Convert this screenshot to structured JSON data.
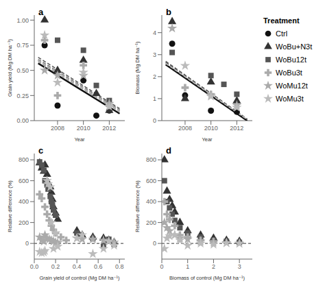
{
  "chart_data": [
    {
      "type": "scatter",
      "title": "a",
      "x_label": "Year",
      "y_label": "Grain yield  (Mg DM ha⁻¹)",
      "xlim": [
        2006.2,
        2013.2
      ],
      "xticks": [
        2008,
        2010,
        2012
      ],
      "ylim": [
        0,
        1.05
      ],
      "yticks": [
        {
          "value": 0,
          "label": "0.00"
        },
        {
          "value": 0.25,
          "label": "0.25"
        },
        {
          "value": 0.5,
          "label": "0.50"
        },
        {
          "value": 0.75,
          "label": "0.75"
        },
        {
          "value": 1,
          "label": "1.00"
        }
      ],
      "legend": "right",
      "legend_title": "Treatment",
      "series": [
        {
          "name": "Ctrl",
          "type": "scatter",
          "color": "#111111",
          "marker": "circle",
          "x": [
            2007,
            2008,
            2009,
            2010,
            2011,
            2012
          ],
          "values": [
            0.75,
            0.15,
            null,
            0.4,
            0.05,
            0.1
          ]
        },
        {
          "name": "WoBu+N3t",
          "type": "scatter",
          "color": "#333333",
          "marker": "triangle",
          "x": [
            2007,
            2008,
            2009,
            2010,
            2011,
            2012
          ],
          "values": [
            1.0,
            0.5,
            null,
            0.6,
            0.27,
            0.1
          ]
        },
        {
          "name": "WoBu12t",
          "type": "scatter",
          "color": "#555555",
          "marker": "square",
          "x": [
            2007,
            2008,
            2009,
            2010,
            2011,
            2012
          ],
          "values": [
            null,
            0.8,
            null,
            0.7,
            0.35,
            0.2
          ]
        },
        {
          "name": "WoBu3t",
          "type": "scatter",
          "color": "#aaaaaa",
          "marker": "plus",
          "x": [
            2007,
            2008,
            2009,
            2010,
            2011,
            2012
          ],
          "values": [
            0.8,
            0.25,
            null,
            0.55,
            null,
            0.15
          ]
        },
        {
          "name": "WoMu12t",
          "type": "scatter",
          "color": "#aaaaaa",
          "marker": "star",
          "x": [
            2007,
            2008,
            2009,
            2010,
            2011,
            2012
          ],
          "values": [
            0.5,
            0.45,
            null,
            0.45,
            null,
            0.17
          ]
        },
        {
          "name": "WoMu3t",
          "type": "scatter",
          "color": "#bbbbbb",
          "marker": "star",
          "x": [
            2007,
            2008,
            2009,
            2010,
            2011,
            2012
          ],
          "values": [
            0.85,
            0.38,
            null,
            0.48,
            null,
            0.14
          ]
        },
        {
          "type": "line",
          "color": "#111111",
          "line_style": "solid",
          "x": [
            2006.5,
            2012.8
          ],
          "values": [
            0.57,
            0.07
          ]
        },
        {
          "type": "line",
          "color": "#333333",
          "line_style": "dashed",
          "x": [
            2006.5,
            2012.8
          ],
          "values": [
            0.6,
            0.1
          ]
        },
        {
          "type": "line",
          "color": "#555555",
          "line_style": "dashed",
          "x": [
            2006.5,
            2012.8
          ],
          "values": [
            0.63,
            0.12
          ]
        },
        {
          "type": "line",
          "color": "#777777",
          "line_style": "dashed",
          "x": [
            2006.5,
            2012.8
          ],
          "values": [
            0.61,
            0.11
          ]
        },
        {
          "type": "line",
          "color": "#999999",
          "line_style": "dashed",
          "x": [
            2006.5,
            2012.8
          ],
          "values": [
            0.59,
            0.09
          ]
        },
        {
          "type": "line",
          "color": "#bbbbbb",
          "line_style": "dashed",
          "x": [
            2006.5,
            2012.8
          ],
          "values": [
            0.6,
            0.1
          ]
        }
      ]
    },
    {
      "type": "scatter",
      "title": "b",
      "x_label": "Year",
      "y_label": "Biomass  (Mg DM ha⁻¹)",
      "xlim": [
        2006.2,
        2013.2
      ],
      "xticks": [
        2008,
        2010,
        2012
      ],
      "ylim": [
        0,
        4.8
      ],
      "yticks": [
        0,
        1,
        2,
        3,
        4
      ],
      "series": [
        {
          "name": "Ctrl",
          "type": "scatter",
          "color": "#111111",
          "marker": "circle",
          "x": [
            2007,
            2008,
            2009,
            2010,
            2011,
            2012
          ],
          "values": [
            3.5,
            1.15,
            null,
            0.45,
            null,
            0.4
          ]
        },
        {
          "name": "WoBu+N3t",
          "type": "scatter",
          "color": "#333333",
          "marker": "triangle",
          "x": [
            2007,
            2008,
            2009,
            2010,
            2011,
            2012
          ],
          "values": [
            4.5,
            1.0,
            null,
            1.75,
            null,
            0.9
          ]
        },
        {
          "name": "WoBu12t",
          "type": "scatter",
          "color": "#555555",
          "marker": "square",
          "x": [
            2007,
            2008,
            2009,
            2010,
            2011,
            2012
          ],
          "values": [
            3.1,
            null,
            null,
            2.05,
            1.65,
            1.2
          ]
        },
        {
          "name": "WoBu3t",
          "type": "scatter",
          "color": "#aaaaaa",
          "marker": "plus",
          "x": [
            2007,
            2008,
            2009,
            2010,
            2011,
            2012
          ],
          "values": [
            null,
            1.5,
            null,
            1.2,
            null,
            null
          ]
        },
        {
          "name": "WoMu12t",
          "type": "scatter",
          "color": "#aaaaaa",
          "marker": "star",
          "x": [
            2007,
            2008,
            2009,
            2010,
            2011,
            2012
          ],
          "values": [
            4.2,
            null,
            null,
            1.15,
            null,
            0.7
          ]
        },
        {
          "name": "WoMu3t",
          "type": "scatter",
          "color": "#bbbbbb",
          "marker": "star",
          "x": [
            2007,
            2008,
            2009,
            2010,
            2011,
            2012
          ],
          "values": [
            null,
            2.5,
            null,
            1.1,
            null,
            0.6
          ]
        },
        {
          "type": "line",
          "color": "#111111",
          "line_style": "solid",
          "x": [
            2006.5,
            2012.8
          ],
          "values": [
            2.55,
            0.0
          ]
        },
        {
          "type": "line",
          "color": "#333333",
          "line_style": "dashed",
          "x": [
            2006.5,
            2012.8
          ],
          "values": [
            2.65,
            0.05
          ]
        },
        {
          "type": "line",
          "color": "#555555",
          "line_style": "dashed",
          "x": [
            2006.5,
            2012.8
          ],
          "values": [
            2.7,
            0.08
          ]
        },
        {
          "type": "line",
          "color": "#777777",
          "line_style": "dashed",
          "x": [
            2006.5,
            2012.8
          ],
          "values": [
            2.62,
            0.05
          ]
        },
        {
          "type": "line",
          "color": "#999999",
          "line_style": "dashed",
          "x": [
            2006.5,
            2012.8
          ],
          "values": [
            2.6,
            0.06
          ]
        },
        {
          "type": "line",
          "color": "#bbbbbb",
          "line_style": "dashed",
          "x": [
            2006.5,
            2012.8
          ],
          "values": [
            2.61,
            0.06
          ]
        }
      ]
    },
    {
      "type": "scatter",
      "title": "c",
      "x_label": "Grain yield of control  (Mg DM ha⁻¹)",
      "y_label": "Relative difference (%)",
      "xlim": [
        0,
        0.85
      ],
      "xticks": [
        {
          "value": 0,
          "label": "0.0"
        },
        0.2,
        0.4,
        0.6,
        0.8
      ],
      "ylim": [
        -150,
        860
      ],
      "yticks": [
        0,
        200,
        400,
        600,
        800
      ],
      "reference_lines": [
        {
          "y": 0,
          "color": "#333333",
          "line_style": "dashed"
        }
      ],
      "series": [
        {
          "name": "WoBu+N3t",
          "type": "scatter",
          "color": "#333333",
          "marker": "triangle",
          "x": [
            0.05,
            0.07,
            0.09,
            0.1,
            0.12,
            0.13,
            0.15,
            0.16,
            0.17,
            0.18,
            0.2,
            0.22,
            0.4,
            0.45,
            0.55,
            0.65,
            0.7,
            0.75
          ],
          "values": [
            770,
            720,
            690,
            750,
            660,
            580,
            540,
            490,
            420,
            350,
            290,
            230,
            120,
            80,
            60,
            50,
            30,
            10
          ]
        },
        {
          "name": "WoBu12t",
          "type": "scatter",
          "color": "#555555",
          "marker": "square",
          "x": [
            0.05,
            0.07,
            0.09,
            0.1,
            0.12,
            0.13,
            0.15,
            0.16,
            0.17,
            0.18,
            0.2,
            0.4,
            0.42,
            0.55,
            0.65,
            0.7,
            0.75
          ],
          "values": [
            780,
            750,
            700,
            600,
            560,
            520,
            450,
            400,
            370,
            320,
            270,
            100,
            80,
            45,
            -20,
            40,
            -10
          ]
        },
        {
          "name": "WoBu3t",
          "type": "scatter",
          "color": "#aaaaaa",
          "marker": "plus",
          "x": [
            0.05,
            0.07,
            0.1,
            0.12,
            0.14,
            0.16,
            0.18,
            0.2,
            0.25,
            0.3
          ],
          "values": [
            470,
            430,
            350,
            280,
            220,
            170,
            130,
            100,
            60,
            30
          ]
        },
        {
          "name": "WoMu12t",
          "type": "scatter",
          "color": "#aaaaaa",
          "marker": "star",
          "x": [
            0.05,
            0.07,
            0.09,
            0.1,
            0.12,
            0.14,
            0.16,
            0.18,
            0.2,
            0.22,
            0.4,
            0.45,
            0.55,
            0.65,
            0.7,
            0.75
          ],
          "values": [
            60,
            30,
            20,
            80,
            50,
            40,
            30,
            20,
            10,
            5,
            50,
            40,
            40,
            30,
            20,
            10
          ]
        },
        {
          "name": "WoMu3t",
          "type": "scatter",
          "color": "#bbbbbb",
          "marker": "star",
          "x": [
            0.05,
            0.07,
            0.09,
            0.1,
            0.12,
            0.13,
            0.15,
            0.16,
            0.18,
            0.2,
            0.22,
            0.4,
            0.45,
            0.55,
            0.65,
            0.7,
            0.75
          ],
          "values": [
            -80,
            -90,
            -85,
            -70,
            600,
            570,
            540,
            200,
            -50,
            100,
            -30,
            50,
            80,
            -100,
            -50,
            20,
            -20
          ]
        }
      ]
    },
    {
      "type": "scatter",
      "title": "d",
      "x_label": "Biomass of control  (Mg DM ha⁻¹)",
      "y_label": "Relative difference (%)",
      "xlim": [
        0,
        3.5
      ],
      "xticks": [
        0,
        1,
        2,
        3
      ],
      "ylim": [
        -150,
        860
      ],
      "yticks": [
        0,
        200,
        400,
        600,
        800
      ],
      "reference_lines": [
        {
          "y": 0,
          "color": "#333333",
          "line_style": "dashed"
        }
      ],
      "series": [
        {
          "name": "WoBu+N3t",
          "type": "scatter",
          "color": "#333333",
          "marker": "triangle",
          "x": [
            0.1,
            0.2,
            0.3,
            0.4,
            0.5,
            0.7,
            1.0,
            1.5,
            2.0,
            2.5,
            3.0
          ],
          "values": [
            800,
            500,
            420,
            360,
            300,
            200,
            120,
            80,
            50,
            30,
            20
          ]
        },
        {
          "name": "WoBu12t",
          "type": "scatter",
          "color": "#555555",
          "marker": "square",
          "x": [
            0.1,
            0.2,
            0.3,
            0.4,
            0.5,
            0.7,
            1.0,
            1.5,
            2.0,
            2.5,
            3.0
          ],
          "values": [
            600,
            400,
            340,
            280,
            220,
            150,
            100,
            60,
            30,
            20,
            10
          ]
        },
        {
          "name": "WoBu3t",
          "type": "scatter",
          "color": "#aaaaaa",
          "marker": "plus",
          "x": [
            0.1,
            0.2,
            0.3,
            0.5,
            0.7,
            1.0,
            1.5,
            2.0
          ],
          "values": [
            400,
            280,
            230,
            170,
            80,
            60,
            30,
            20
          ]
        },
        {
          "name": "WoMu12t",
          "type": "scatter",
          "color": "#aaaaaa",
          "marker": "star",
          "x": [
            0.1,
            0.2,
            0.3,
            0.5,
            0.7,
            1.0,
            1.5,
            2.0,
            2.5,
            3.0
          ],
          "values": [
            200,
            150,
            120,
            80,
            50,
            40,
            20,
            10,
            5,
            0
          ]
        },
        {
          "name": "WoMu3t",
          "type": "scatter",
          "color": "#bbbbbb",
          "marker": "star",
          "x": [
            0.1,
            0.2,
            0.3,
            0.5,
            0.7,
            1.0,
            1.5,
            2.0,
            2.5,
            3.0
          ],
          "values": [
            -50,
            50,
            70,
            80,
            30,
            -20,
            0,
            -10,
            5,
            0
          ]
        }
      ]
    }
  ]
}
